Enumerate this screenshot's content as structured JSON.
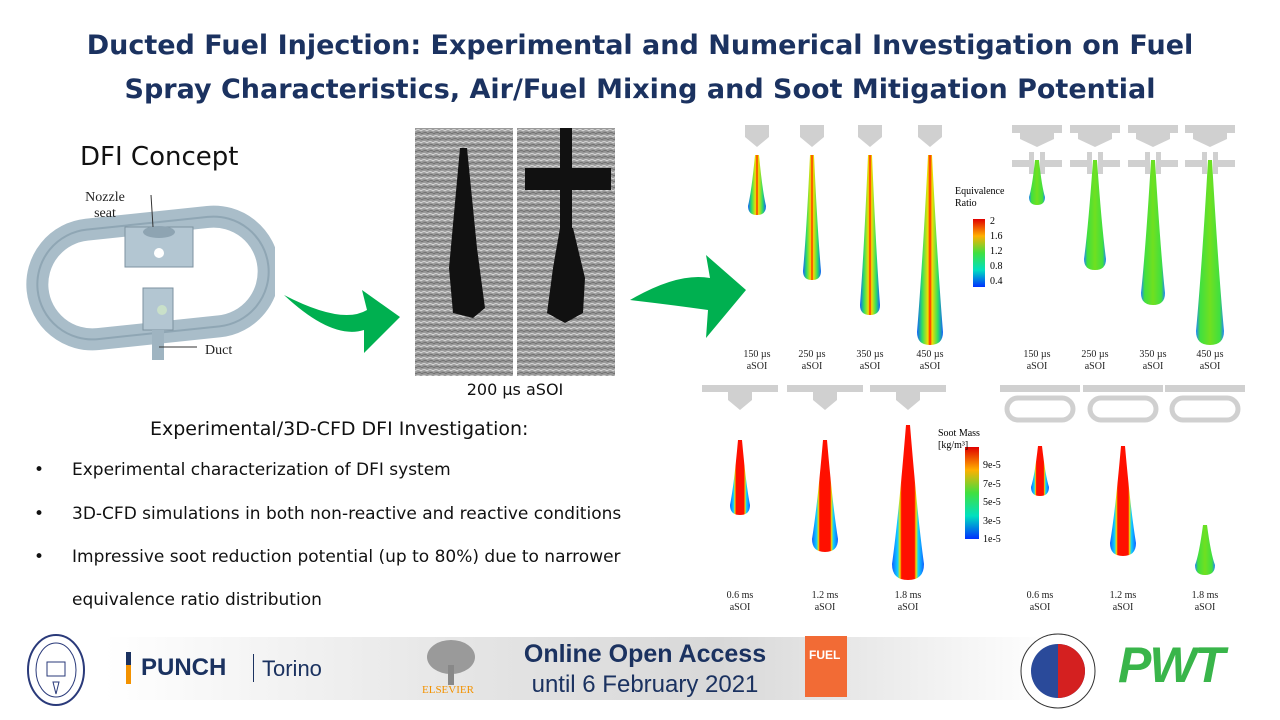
{
  "title": {
    "line1": "Ducted Fuel Injection: Experimental and Numerical Investigation on Fuel",
    "line2": "Spray Characteristics, Air/Fuel Mixing and Soot Mitigation Potential"
  },
  "concept": {
    "heading": "DFI Concept",
    "nozzle_label_1": "Nozzle",
    "nozzle_label_2": "seat",
    "duct_label": "Duct"
  },
  "schlieren": {
    "caption": "200 µs aSOI"
  },
  "investigation": {
    "heading": "Experimental/3D-CFD DFI Investigation:",
    "bullets": [
      "Experimental characterization of DFI system",
      "3D-CFD simulations in both non-reactive and reactive conditions",
      "Impressive soot reduction potential (up to 80%) due to narrower",
      "equivalence ratio distribution"
    ]
  },
  "equivalence": {
    "legend_title_1": "Equivalence",
    "legend_title_2": "Ratio",
    "ticks": [
      "2",
      "1.6",
      "1.2",
      "0.8",
      "0.4"
    ],
    "times": [
      "150 µs",
      "250 µs",
      "350 µs",
      "450 µs"
    ],
    "suffix": "aSOI"
  },
  "soot": {
    "legend_title_1": "Soot Mass",
    "legend_title_2": "[kg/m³]",
    "ticks": [
      "9e-5",
      "7e-5",
      "5e-5",
      "3e-5",
      "1e-5"
    ],
    "times": [
      "0.6 ms",
      "1.2 ms",
      "1.8 ms"
    ],
    "suffix": "aSOI"
  },
  "footer": {
    "punch": "PUNCH",
    "torino": "Torino",
    "elsevier": "ELSEVIER",
    "fuel": "FUEL",
    "access_1": "Online Open Access",
    "access_2": "until 6 February 2021",
    "pwt": "PWT"
  },
  "colors": {
    "title": "#1b3260",
    "arrow": "#00b050",
    "pwt": "#39b54a",
    "fuel_cover": "#f26b35"
  }
}
